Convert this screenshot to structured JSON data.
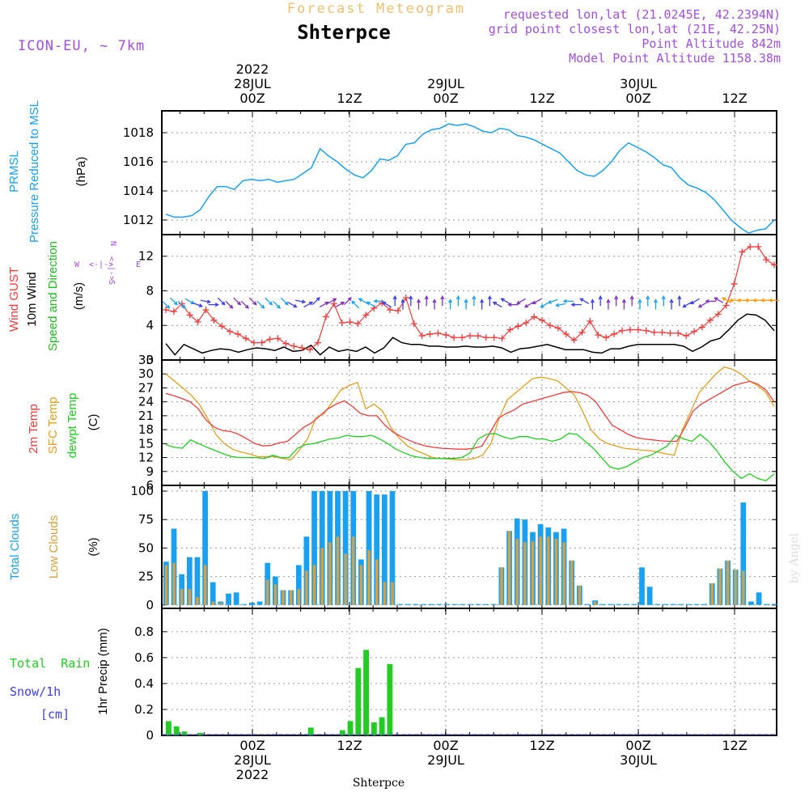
{
  "header": {
    "product_title": "Forecast Meteogram",
    "location": "Shterpce",
    "model": "ICON-EU, ~ 7km",
    "info_lines": [
      "requested lon,lat (21.0245E, 42.2394N)",
      "grid point closest lon,lat (21E, 42.25N)",
      "Point Altitude 842m",
      "Model Point Altitude 1158.38m"
    ]
  },
  "footer": {
    "location": "Shterpce",
    "credit": "by Angel"
  },
  "colors": {
    "pressure": "#1aa0f0",
    "gust": "#f03c3c",
    "wind": "#000000",
    "dir_label": "#22bb22",
    "temp": "#f03c3c",
    "sfc_temp": "#e0a020",
    "dewpt": "#22cc22",
    "total_clouds": "#1aa0f0",
    "low_clouds": "#d8a040",
    "rain": "#22cc22",
    "snow": "#3c3cf0",
    "violet": "#a050e0",
    "title_orange": "#f0c070"
  },
  "time_axis": {
    "start_hour": -10,
    "end_hour": 54,
    "hours_per_step": 1,
    "top_labels": [
      {
        "hour": 0,
        "lines": [
          "2022",
          "28JUL",
          "00Z"
        ]
      },
      {
        "hour": 10,
        "lines": [
          "12Z"
        ]
      },
      {
        "hour": 20,
        "lines": [
          "29JUL",
          "00Z"
        ]
      },
      {
        "hour": 30,
        "lines": [
          "12Z"
        ]
      },
      {
        "hour": 40,
        "lines": [
          "30JUL",
          "00Z"
        ]
      },
      {
        "hour": 50,
        "lines": [
          "12Z"
        ]
      }
    ],
    "bottom_labels": [
      {
        "hour": 0,
        "lines": [
          "00Z",
          "28JUL",
          "2022"
        ]
      },
      {
        "hour": 10,
        "lines": [
          "12Z"
        ]
      },
      {
        "hour": 20,
        "lines": [
          "00Z",
          "29JUL"
        ]
      },
      {
        "hour": 30,
        "lines": [
          "12Z"
        ]
      },
      {
        "hour": 40,
        "lines": [
          "00Z",
          "30JUL"
        ]
      },
      {
        "hour": 50,
        "lines": [
          "12Z"
        ]
      }
    ]
  },
  "chart_data": [
    {
      "type": "line",
      "id": "pressure",
      "title": "PRMSL Pressure Reduced to MSL",
      "ylabel_lines": [
        "PRMSL",
        "Pressure Reduced to MSL"
      ],
      "unit": "(hPa)",
      "ylim": [
        1011,
        1019.5
      ],
      "yticks": [
        1012,
        1014,
        1016,
        1018
      ],
      "series": [
        {
          "name": "PRMSL",
          "values": [
            1012.4,
            1012.2,
            1012.2,
            1012.3,
            1012.7,
            1013.6,
            1014.3,
            1014.3,
            1014.1,
            1014.7,
            1014.8,
            1014.7,
            1014.8,
            1014.6,
            1014.7,
            1014.8,
            1015.2,
            1015.6,
            1016.9,
            1016.4,
            1016.0,
            1015.5,
            1015.1,
            1014.9,
            1015.4,
            1016.2,
            1016.1,
            1016.4,
            1017.2,
            1017.3,
            1017.9,
            1018.2,
            1018.3,
            1018.6,
            1018.5,
            1018.6,
            1018.4,
            1018.1,
            1018.0,
            1018.3,
            1018.2,
            1017.8,
            1017.7,
            1017.5,
            1017.2,
            1016.9,
            1016.6,
            1016.0,
            1015.4,
            1015.1,
            1015.0,
            1015.4,
            1016.0,
            1016.8,
            1017.3,
            1017.0,
            1016.7,
            1016.3,
            1015.8,
            1015.6,
            1014.9,
            1014.4,
            1014.2,
            1013.9,
            1013.4,
            1012.7,
            1012.0,
            1011.5,
            1011.1,
            1011.3,
            1011.4,
            1012.0
          ]
        }
      ]
    },
    {
      "type": "line",
      "id": "wind",
      "title": "Wind GUST / 10m Wind Speed and Direction",
      "ylabel_lines": [
        "Wind GUST",
        "10m Wind",
        "Speed and Direction"
      ],
      "unit": "(m/s)",
      "compass": {
        "n": "N",
        "s": "S",
        "w": "W",
        "e": "E"
      },
      "ylim": [
        0,
        14.5
      ],
      "yticks": [
        0,
        4,
        8,
        12
      ],
      "series": [
        {
          "name": "Wind GUST",
          "values": [
            5.8,
            5.6,
            6.5,
            5.2,
            4.4,
            5.8,
            4.6,
            3.9,
            3.3,
            3.0,
            2.5,
            2.0,
            2.0,
            2.4,
            2.5,
            1.9,
            1.6,
            1.4,
            1.2,
            2.0,
            5.0,
            6.5,
            4.3,
            4.4,
            4.2,
            5.2,
            6.0,
            6.6,
            5.8,
            5.7,
            7.2,
            4.2,
            2.8,
            3.0,
            3.1,
            2.9,
            2.6,
            2.6,
            2.8,
            2.8,
            2.6,
            2.6,
            2.5,
            3.5,
            3.9,
            4.3,
            5.0,
            4.6,
            4.0,
            3.7,
            3.0,
            2.3,
            3.2,
            4.5,
            2.9,
            2.6,
            3.0,
            3.4,
            3.5,
            3.5,
            3.4,
            3.2,
            3.2,
            3.1,
            3.1,
            2.8,
            3.3,
            3.8,
            4.6,
            5.3,
            6.3,
            8.8,
            12.5,
            13.1,
            13.1,
            11.6,
            11.0
          ]
        },
        {
          "name": "10m Wind",
          "values": [
            1.9,
            0.6,
            1.8,
            1.3,
            0.8,
            1.1,
            1.3,
            1.2,
            0.9,
            1.2,
            1.4,
            1.3,
            1.1,
            1.5,
            1.0,
            1.1,
            1.7,
            0.6,
            1.5,
            1.0,
            1.2,
            1.0,
            1.5,
            0.8,
            1.4,
            2.6,
            2.0,
            1.8,
            1.8,
            1.6,
            1.6,
            1.5,
            1.5,
            1.6,
            1.5,
            1.5,
            1.6,
            1.4,
            0.9,
            1.3,
            1.4,
            1.6,
            1.8,
            1.5,
            1.2,
            1.2,
            1.2,
            0.9,
            0.8,
            1.3,
            1.3,
            1.6,
            1.8,
            1.8,
            1.8,
            1.8,
            1.8,
            1.6,
            1.0,
            1.5,
            2.2,
            2.5,
            3.5,
            4.6,
            5.3,
            5.2,
            4.6,
            3.4
          ]
        }
      ],
      "direction_arrows_deg": [
        135,
        135,
        135,
        120,
        110,
        100,
        90,
        135,
        135,
        135,
        135,
        135,
        135,
        135,
        135,
        135,
        120,
        100,
        60,
        45,
        60,
        60,
        60,
        45,
        315,
        300,
        300,
        270,
        300,
        0,
        0,
        0,
        0,
        0,
        0,
        0,
        0,
        0,
        0,
        0,
        0,
        0,
        300,
        300,
        270,
        240,
        240,
        240,
        240,
        250,
        260,
        270,
        270,
        300,
        0,
        0,
        0,
        0,
        0,
        0,
        0,
        0,
        0,
        0,
        0,
        0,
        240,
        240,
        240,
        270,
        300,
        300,
        270,
        270,
        270,
        270,
        270,
        270
      ]
    },
    {
      "type": "line",
      "id": "temperature",
      "title": "2m Temp / SFC Temp / dewpt Temp",
      "ylabel_lines": [
        "2m Temp",
        "SFC Temp",
        "dewpt Temp"
      ],
      "unit": "(C)",
      "ylim": [
        6,
        33
      ],
      "yticks": [
        6,
        9,
        12,
        15,
        18,
        21,
        24,
        27,
        30,
        33
      ],
      "series": [
        {
          "name": "2m Temp",
          "values": [
            25.8,
            25.3,
            24.7,
            24.0,
            22.5,
            20.0,
            18.5,
            17.8,
            17.6,
            17.0,
            16.0,
            15.0,
            14.5,
            14.6,
            15.2,
            15.5,
            17.0,
            18.5,
            19.5,
            21.0,
            22.5,
            23.5,
            24.2,
            23.0,
            21.5,
            21.0,
            21.0,
            19.0,
            17.5,
            16.5,
            15.7,
            15.0,
            14.5,
            14.2,
            14.0,
            13.9,
            13.8,
            13.8,
            14.0,
            14.5,
            17.5,
            20.5,
            21.5,
            22.3,
            23.5,
            24.0,
            24.5,
            25.0,
            25.5,
            26.0,
            26.2,
            26.0,
            25.4,
            24.0,
            21.5,
            19.0,
            18.0,
            17.0,
            16.3,
            16.0,
            15.8,
            15.6,
            15.5,
            15.5,
            18.5,
            22.0,
            23.5,
            24.5,
            25.5,
            26.5,
            27.5,
            28.0,
            28.4,
            27.8,
            26.5,
            24.0
          ]
        },
        {
          "name": "SFC Temp",
          "values": [
            30.0,
            28.5,
            27.0,
            25.5,
            23.5,
            20.5,
            17.0,
            15.0,
            13.8,
            13.2,
            12.8,
            12.2,
            12.2,
            12.2,
            11.8,
            11.5,
            13.5,
            16.0,
            20.5,
            21.5,
            24.0,
            26.5,
            27.5,
            28.2,
            22.5,
            23.5,
            22.0,
            18.5,
            16.2,
            14.5,
            13.5,
            12.8,
            12.0,
            11.8,
            11.7,
            11.5,
            11.5,
            11.8,
            12.5,
            15.0,
            20.5,
            24.5,
            26.0,
            27.5,
            29.0,
            29.3,
            29.0,
            28.5,
            27.0,
            25.5,
            22.0,
            18.0,
            16.0,
            15.0,
            14.5,
            14.0,
            13.8,
            13.6,
            13.5,
            13.2,
            12.8,
            12.5,
            18.0,
            22.0,
            26.0,
            28.0,
            30.0,
            31.5,
            31.0,
            30.0,
            28.5,
            27.5,
            26.0,
            23.0
          ]
        },
        {
          "name": "dewpt Temp",
          "values": [
            14.8,
            14.2,
            14.0,
            15.8,
            15.0,
            14.2,
            13.5,
            12.8,
            12.2,
            12.0,
            12.0,
            12.0,
            11.8,
            12.5,
            12.0,
            12.0,
            14.0,
            14.8,
            15.0,
            15.5,
            16.0,
            16.2,
            16.8,
            16.5,
            16.5,
            16.8,
            16.0,
            15.0,
            13.8,
            13.0,
            12.3,
            12.0,
            11.8,
            11.8,
            11.8,
            11.8,
            12.0,
            13.0,
            16.0,
            17.0,
            17.2,
            16.5,
            16.0,
            16.5,
            16.5,
            16.0,
            16.0,
            15.5,
            16.0,
            17.2,
            17.0,
            15.5,
            14.0,
            12.0,
            10.0,
            9.5,
            10.0,
            11.0,
            12.0,
            12.5,
            13.5,
            14.5,
            16.8,
            16.0,
            15.5,
            17.0,
            15.5,
            13.5,
            11.0,
            9.0,
            7.5,
            8.5,
            7.5,
            7.0,
            8.5
          ]
        }
      ]
    },
    {
      "type": "bar",
      "id": "clouds",
      "title": "Total Clouds / Low Clouds",
      "ylabel_lines": [
        "Total Clouds",
        "Low Clouds"
      ],
      "unit": "(%)",
      "ylim": [
        -3,
        105
      ],
      "yticks": [
        0,
        25,
        50,
        75,
        100
      ],
      "series": [
        {
          "name": "Total Clouds",
          "values": [
            38,
            67,
            27,
            42,
            42,
            100,
            20,
            3,
            10,
            11,
            0,
            2,
            3,
            37,
            25,
            13,
            13,
            35,
            60,
            100,
            100,
            100,
            100,
            100,
            100,
            40,
            100,
            97,
            97,
            100,
            0,
            0,
            0,
            0,
            0,
            0,
            0,
            0,
            0,
            0,
            0,
            0,
            0,
            33,
            65,
            76,
            75,
            64,
            71,
            68,
            64,
            67,
            39,
            17,
            0,
            4,
            0,
            0,
            0,
            0,
            0,
            33,
            16,
            0,
            0,
            0,
            0,
            0,
            0,
            0,
            19,
            32,
            39,
            31,
            90,
            3,
            11,
            0,
            0
          ]
        },
        {
          "name": "Low Clouds",
          "values": [
            35,
            37,
            14,
            14,
            7,
            35,
            3,
            2,
            0,
            0,
            0,
            0,
            0,
            22,
            18,
            13,
            13,
            14,
            30,
            35,
            50,
            55,
            60,
            45,
            60,
            35,
            48,
            40,
            20,
            20,
            0,
            0,
            0,
            0,
            0,
            0,
            0,
            0,
            0,
            0,
            0,
            0,
            0,
            33,
            65,
            58,
            55,
            56,
            60,
            60,
            58,
            55,
            39,
            17,
            0,
            3,
            0,
            0,
            0,
            0,
            0,
            0,
            0,
            0,
            0,
            0,
            0,
            0,
            0,
            0,
            19,
            32,
            39,
            31,
            30,
            0,
            0,
            0,
            0
          ]
        }
      ]
    },
    {
      "type": "bar",
      "id": "precip",
      "title": "1hr Precip",
      "ylabel_lines": [
        "1hr Precip (mm)"
      ],
      "legend_lines": [
        "Total  Rain",
        "Snow/1h",
        "[cm]"
      ],
      "ylim": [
        0,
        0.98
      ],
      "yticks": [
        0,
        0.2,
        0.4,
        0.6,
        0.8
      ],
      "series": [
        {
          "name": "Total Rain",
          "values": [
            0.11,
            0.07,
            0.03,
            0,
            0.02,
            0,
            0,
            0,
            0,
            0,
            0,
            0,
            0,
            0,
            0,
            0,
            0,
            0,
            0.06,
            0,
            0,
            0,
            0.04,
            0.11,
            0.52,
            0.66,
            0.1,
            0.14,
            0.55,
            0,
            0,
            0,
            0,
            0,
            0,
            0,
            0,
            0,
            0,
            0,
            0,
            0,
            0,
            0,
            0,
            0,
            0,
            0,
            0,
            0,
            0,
            0,
            0,
            0,
            0,
            0,
            0,
            0,
            0,
            0,
            0,
            0,
            0,
            0,
            0,
            0,
            0,
            0,
            0,
            0,
            0,
            0,
            0,
            0,
            0,
            0,
            0,
            0
          ]
        },
        {
          "name": "Snow/1h",
          "values": []
        }
      ]
    }
  ]
}
